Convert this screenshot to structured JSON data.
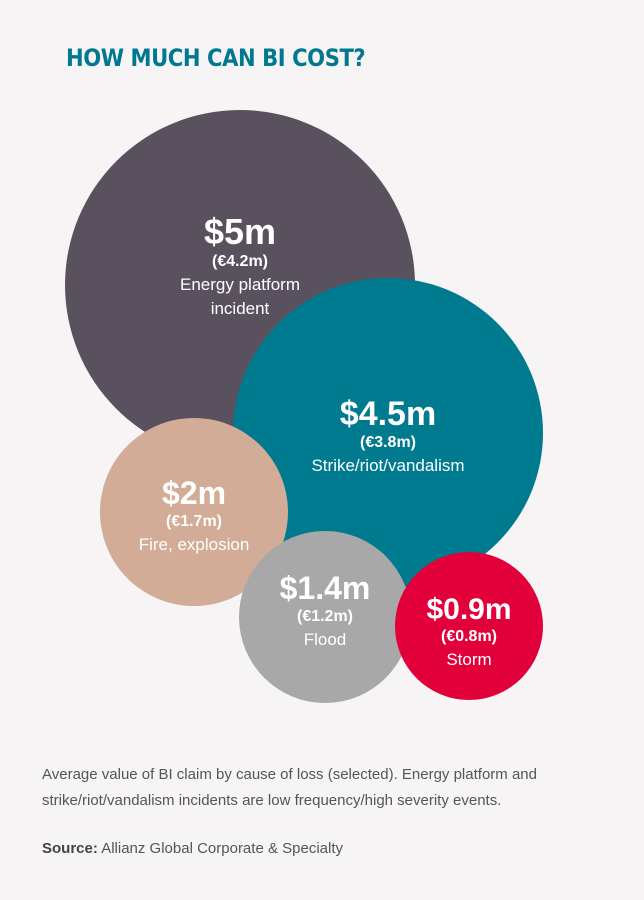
{
  "title": "HOW MUCH CAN BI COST?",
  "chart_data": {
    "type": "bubble",
    "title": "HOW MUCH CAN BI COST?",
    "bubbles": [
      {
        "label": "Energy platform incident",
        "value_usd_m": 5,
        "value_text": "$5m",
        "eur_text": "(€4.2m)",
        "value_eur_m": 4.2,
        "color": "#59525e",
        "label_lines": [
          "Energy platform",
          "incident"
        ]
      },
      {
        "label": "Strike/riot/vandalism",
        "value_usd_m": 4.5,
        "value_text": "$4.5m",
        "eur_text": "(€3.8m)",
        "value_eur_m": 3.8,
        "color": "#007a8f",
        "label_lines": [
          "Strike/riot/vandalism"
        ]
      },
      {
        "label": "Fire, explosion",
        "value_usd_m": 2,
        "value_text": "$2m",
        "eur_text": "(€1.7m)",
        "value_eur_m": 1.7,
        "color": "#d2ac97",
        "label_lines": [
          "Fire, explosion"
        ]
      },
      {
        "label": "Flood",
        "value_usd_m": 1.4,
        "value_text": "$1.4m",
        "eur_text": "(€1.2m)",
        "value_eur_m": 1.2,
        "color": "#a9a8a9",
        "label_lines": [
          "Flood"
        ]
      },
      {
        "label": "Storm",
        "value_usd_m": 0.9,
        "value_text": "$0.9m",
        "eur_text": "(€0.8m)",
        "value_eur_m": 0.8,
        "color": "#e1003a",
        "label_lines": [
          "Storm"
        ]
      }
    ]
  },
  "caption": "Average value of BI claim by cause of loss (selected). Energy platform and strike/riot/vandalism incidents are low frequency/high severity events.",
  "source": {
    "label": "Source:",
    "text": "Allianz Global Corporate & Specialty"
  }
}
